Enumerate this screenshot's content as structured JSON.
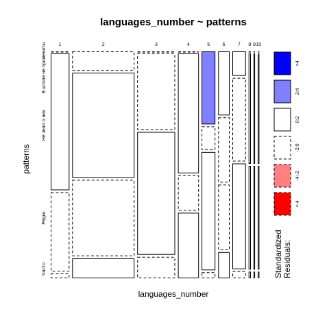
{
  "chart_data": {
    "type": "mosaic",
    "title": "languages_number ~ patterns",
    "xlabel": "languages_number",
    "ylabel": "patterns",
    "x_categories": [
      "1",
      "2",
      "3",
      "4",
      "5",
      "6",
      "7",
      "8",
      "9",
      "10"
    ],
    "y_categories": [
      "В штопе не примениты",
      "Не знал о них",
      "Редко",
      "Часто"
    ],
    "column_proportions": [
      0.1037,
      0.3458,
      0.2104,
      0.1163,
      0.0765,
      0.0635,
      0.0749,
      0.0125,
      0.0084,
      0.0084
    ],
    "cell_proportions": [
      [
        0.0,
        0.6196,
        0.3588,
        0.0217
      ],
      [
        0.0872,
        0.4762,
        0.3461,
        0.0904
      ],
      [
        0.0,
        0.3463,
        0.5564,
        0.0973
      ],
      [
        0.0,
        0.5429,
        0.1602,
        0.2968
      ],
      [
        0.3303,
        0.107,
        0.5358,
        0.027
      ],
      [
        0.2898,
        0.2952,
        0.2965,
        0.1186
      ],
      [
        0.1105,
        0.3786,
        0.4788,
        0.0321
      ],
      [
        0.0,
        0.5,
        0.47,
        0.03
      ],
      [
        0.0,
        0.5,
        0.47,
        0.03
      ],
      [
        0.0,
        0.5,
        0.47,
        0.03
      ]
    ],
    "residual_class": [
      [
        "dashed",
        "solid",
        "dashed",
        "dashed"
      ],
      [
        "dashed",
        "solid",
        "dashed",
        "solid"
      ],
      [
        "dashed",
        "dashed",
        "solid",
        "dashed"
      ],
      [
        "dashed",
        "solid",
        "dashed",
        "solid"
      ],
      [
        "2:4",
        "dashed",
        "solid",
        "dashed"
      ],
      [
        "solid",
        "dashed",
        "dashed",
        "solid"
      ],
      [
        "solid",
        "dashed",
        "solid",
        "dashed"
      ],
      [
        "solid",
        "solid",
        "solid",
        "solid"
      ],
      [
        "solid",
        "solid",
        "solid",
        "solid"
      ],
      [
        "solid",
        "solid",
        "solid",
        "solid"
      ]
    ],
    "legend": {
      "title": "Standardized\nResiduals:",
      "entries": [
        {
          "label": ">4",
          "color": "#0000ff",
          "dashed": false
        },
        {
          "label": "2:4",
          "color": "#8080ff",
          "dashed": false
        },
        {
          "label": "0:2",
          "color": "#ffffff",
          "dashed": false
        },
        {
          "label": "-2:0",
          "color": "#ffffff",
          "dashed": true
        },
        {
          "label": "-4:-2",
          "color": "#ff8080",
          "dashed": true
        },
        {
          "label": "<-4",
          "color": "#ff0000",
          "dashed": true
        }
      ]
    },
    "colors": {
      "strong_positive": "#0000ff",
      "positive": "#8080ff",
      "neutral": "#ffffff",
      "negative": "#ff8080",
      "strong_negative": "#ff0000"
    }
  }
}
